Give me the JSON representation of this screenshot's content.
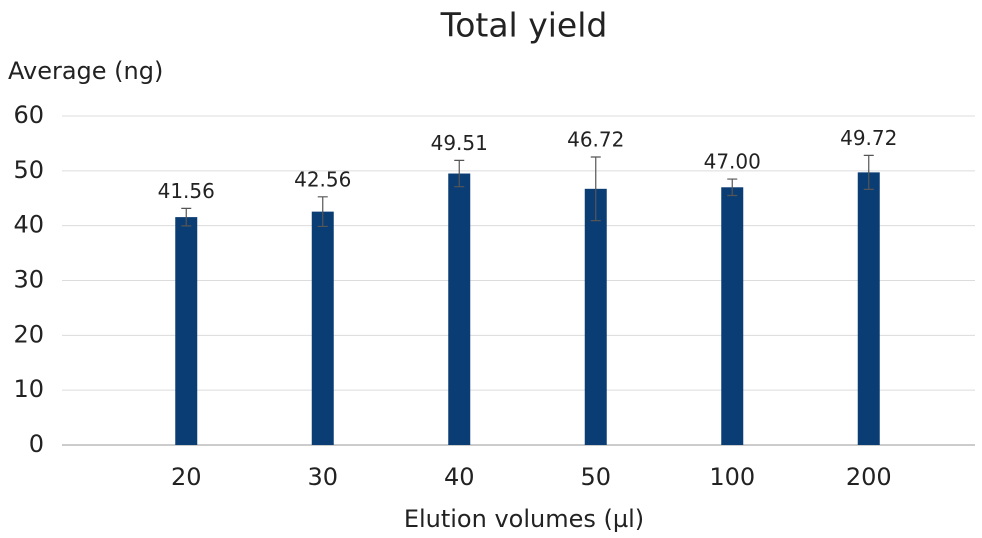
{
  "chart_data": {
    "type": "bar",
    "title": "Total yield",
    "y_label": "Average (ng)",
    "x_label": "Elution volumes (µl)",
    "categories": [
      "20",
      "30",
      "40",
      "50",
      "100",
      "200"
    ],
    "values": [
      41.56,
      42.56,
      49.51,
      46.72,
      47.0,
      49.72
    ],
    "value_labels": [
      "41.56",
      "42.56",
      "49.51",
      "46.72",
      "47.00",
      "49.72"
    ],
    "errors": [
      1.6,
      2.7,
      2.4,
      5.8,
      1.5,
      3.1
    ],
    "color": "#0b3d75",
    "ylim": [
      0,
      60
    ],
    "yticks": [
      0,
      10,
      20,
      30,
      40,
      50,
      60
    ],
    "grid": true
  }
}
